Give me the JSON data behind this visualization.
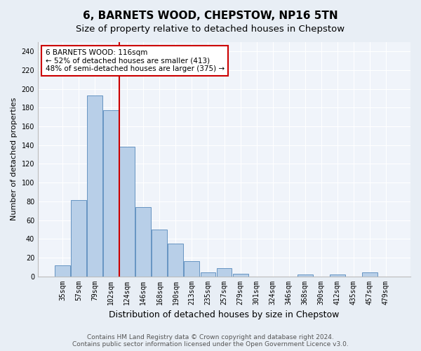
{
  "title": "6, BARNETS WOOD, CHEPSTOW, NP16 5TN",
  "subtitle": "Size of property relative to detached houses in Chepstow",
  "xlabel": "Distribution of detached houses by size in Chepstow",
  "ylabel": "Number of detached properties",
  "categories": [
    "35sqm",
    "57sqm",
    "79sqm",
    "102sqm",
    "124sqm",
    "146sqm",
    "168sqm",
    "190sqm",
    "213sqm",
    "235sqm",
    "257sqm",
    "279sqm",
    "301sqm",
    "324sqm",
    "346sqm",
    "368sqm",
    "390sqm",
    "412sqm",
    "435sqm",
    "457sqm",
    "479sqm"
  ],
  "values": [
    12,
    81,
    193,
    177,
    138,
    74,
    50,
    35,
    16,
    4,
    9,
    3,
    0,
    0,
    0,
    2,
    0,
    2,
    0,
    4,
    0
  ],
  "bar_color": "#b8cfe8",
  "bar_edge_color": "#5588bb",
  "vline_position": 3.5,
  "annotation_text": "6 BARNETS WOOD: 116sqm\n← 52% of detached houses are smaller (413)\n48% of semi-detached houses are larger (375) →",
  "annotation_box_color": "#ffffff",
  "annotation_box_edge": "#cc0000",
  "vline_color": "#cc0000",
  "ylim": [
    0,
    250
  ],
  "yticks": [
    0,
    20,
    40,
    60,
    80,
    100,
    120,
    140,
    160,
    180,
    200,
    220,
    240
  ],
  "bg_color": "#e8eef5",
  "plot_bg_color": "#f0f4fa",
  "footer_line1": "Contains HM Land Registry data © Crown copyright and database right 2024.",
  "footer_line2": "Contains public sector information licensed under the Open Government Licence v3.0.",
  "title_fontsize": 11,
  "subtitle_fontsize": 9.5,
  "xlabel_fontsize": 9,
  "ylabel_fontsize": 8,
  "tick_fontsize": 7,
  "footer_fontsize": 6.5
}
